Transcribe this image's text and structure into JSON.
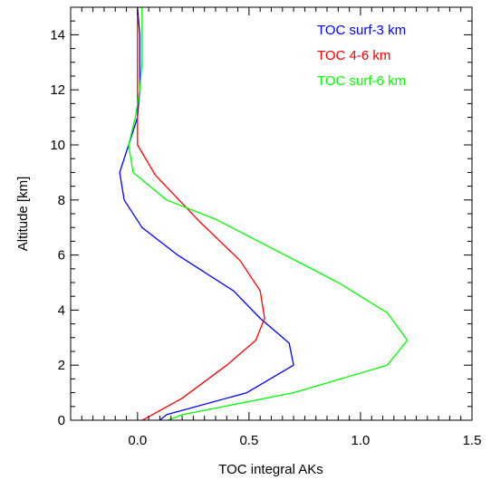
{
  "chart_data": {
    "type": "line",
    "title": "",
    "xlabel": "TOC integral AKs",
    "ylabel": "Altitude [km]",
    "xlim": [
      -0.3,
      1.5
    ],
    "ylim": [
      0,
      15
    ],
    "x_ticks": [
      0.0,
      0.5,
      1.0,
      1.5
    ],
    "x_tick_labels": [
      "0.0",
      "0.5",
      "1.0",
      "1.5"
    ],
    "y_ticks": [
      0,
      2,
      4,
      6,
      8,
      10,
      12,
      14
    ],
    "y_tick_labels": [
      "0",
      "2",
      "4",
      "6",
      "8",
      "10",
      "12",
      "14"
    ],
    "grid": false,
    "legend_position": "top-right",
    "series": [
      {
        "name": "TOC surf-3 km",
        "color": "#0000ff",
        "points": [
          [
            0.07,
            -0.2
          ],
          [
            0.13,
            0.2
          ],
          [
            0.49,
            1.0
          ],
          [
            0.7,
            2.0
          ],
          [
            0.68,
            2.8
          ],
          [
            0.55,
            3.7
          ],
          [
            0.43,
            4.7
          ],
          [
            0.18,
            6.0
          ],
          [
            0.02,
            7.0
          ],
          [
            -0.06,
            8.0
          ],
          [
            -0.08,
            9.0
          ],
          [
            -0.04,
            10.0
          ],
          [
            0.0,
            11.0
          ],
          [
            0.01,
            12.0
          ],
          [
            0.01,
            13.0
          ],
          [
            0.01,
            14.0
          ],
          [
            0.0,
            15.0
          ]
        ]
      },
      {
        "name": "TOC 4-6 km",
        "color": "#ff0000",
        "points": [
          [
            0.0,
            -0.1
          ],
          [
            0.2,
            0.8
          ],
          [
            0.4,
            2.0
          ],
          [
            0.53,
            2.9
          ],
          [
            0.57,
            3.7
          ],
          [
            0.55,
            4.7
          ],
          [
            0.46,
            5.8
          ],
          [
            0.28,
            7.2
          ],
          [
            0.08,
            8.9
          ],
          [
            0.0,
            10.0
          ],
          [
            0.0,
            11.0
          ],
          [
            0.0,
            12.0
          ],
          [
            0.0,
            13.0
          ],
          [
            0.0,
            14.0
          ],
          [
            0.0,
            15.0
          ]
        ]
      },
      {
        "name": "TOC surf-6 km",
        "color": "#00ff00",
        "points": [
          [
            0.07,
            -0.2
          ],
          [
            0.2,
            0.2
          ],
          [
            0.7,
            1.0
          ],
          [
            1.12,
            2.0
          ],
          [
            1.21,
            2.9
          ],
          [
            1.12,
            3.9
          ],
          [
            0.9,
            5.0
          ],
          [
            0.35,
            7.3
          ],
          [
            0.13,
            8.0
          ],
          [
            -0.02,
            9.0
          ],
          [
            -0.04,
            10.0
          ],
          [
            -0.01,
            11.0
          ],
          [
            0.01,
            12.0
          ],
          [
            0.02,
            13.0
          ],
          [
            0.02,
            14.0
          ],
          [
            0.02,
            15.0
          ]
        ]
      }
    ]
  }
}
